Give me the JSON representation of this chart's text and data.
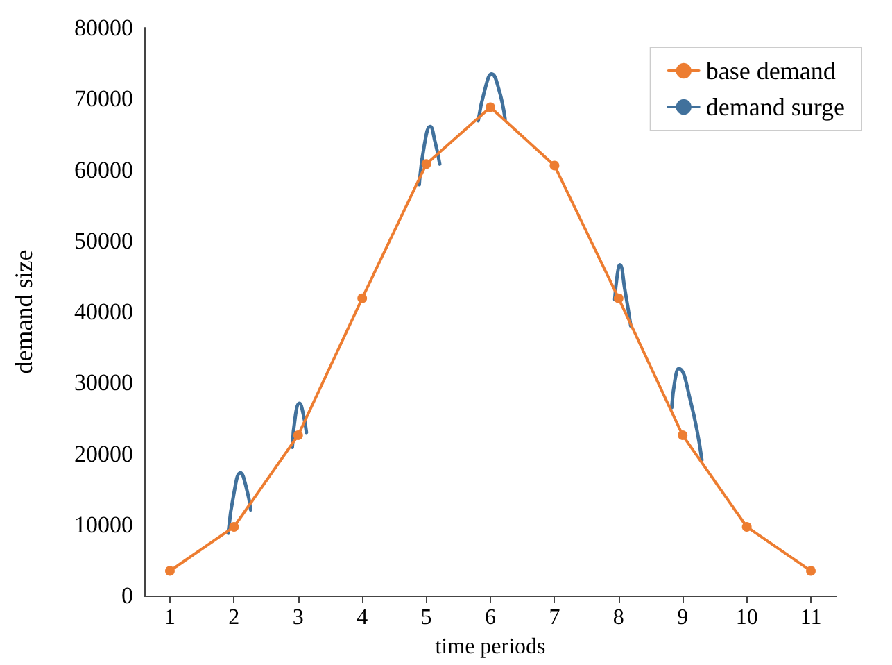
{
  "chart_data": {
    "type": "line",
    "xlabel": "time periods",
    "ylabel": "demand size",
    "xlim": [
      0.6,
      11.4
    ],
    "xticks": [
      1,
      2,
      3,
      4,
      5,
      6,
      7,
      8,
      9,
      10,
      11
    ],
    "ylim": [
      0,
      80000
    ],
    "yticks": [
      0,
      10000,
      20000,
      30000,
      40000,
      50000,
      60000,
      70000,
      80000
    ],
    "grid": false,
    "legend": "top right",
    "series": [
      {
        "name": "base demand",
        "color": "#ed7d31",
        "marker": "circle",
        "x": [
          1,
          2,
          3,
          4,
          5,
          6,
          7,
          8,
          9,
          10,
          11
        ],
        "values": [
          3500,
          9700,
          22600,
          41900,
          60800,
          68800,
          60600,
          41900,
          22600,
          9700,
          3500
        ]
      },
      {
        "name": "demand surge",
        "color": "#41719c",
        "marker": "none",
        "x": [
          1.91,
          2.0,
          2.1,
          2.19,
          2.26,
          2.5,
          2.91,
          2.96,
          3.02,
          3.08,
          3.13,
          4.0,
          4.89,
          4.97,
          5.06,
          5.14,
          5.21,
          5.5,
          5.81,
          5.92,
          6.02,
          6.13,
          6.23,
          7.0,
          7.94,
          7.98,
          8.02,
          8.1,
          8.19,
          8.5,
          8.83,
          8.88,
          8.94,
          9.12,
          9.3
        ],
        "values": [
          8800,
          14500,
          17300,
          15300,
          12100,
          null,
          20900,
          25500,
          27100,
          25600,
          23000,
          null,
          57900,
          63500,
          66100,
          63800,
          60800,
          null,
          66900,
          71500,
          73500,
          71400,
          67100,
          null,
          41700,
          45200,
          46600,
          43000,
          38000,
          null,
          26500,
          30400,
          32000,
          27500,
          19100
        ]
      }
    ]
  }
}
